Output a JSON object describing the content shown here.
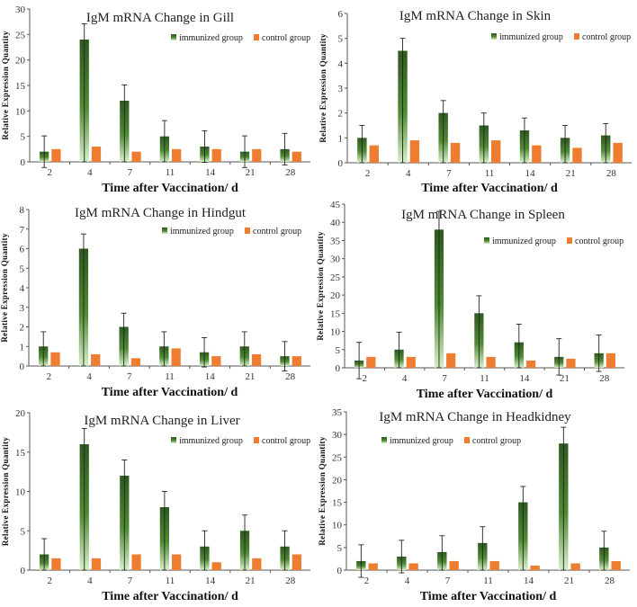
{
  "colors": {
    "immunized_dark": "#2e5a1f",
    "immunized_light": "#d8f0c8",
    "control": "#ee7d31",
    "axis": "#555555"
  },
  "chart_data": [
    {
      "type": "bar",
      "title": "IgM mRNA Change in Gill",
      "xlabel": "Time after  Vaccination/ d",
      "ylabel": "Relative Expression Quantity",
      "categories": [
        "2",
        "4",
        "7",
        "11",
        "14",
        "21",
        "28"
      ],
      "ylim": [
        0,
        30
      ],
      "ystep": 5,
      "legend": "top-right",
      "series": [
        {
          "name": "immunized group",
          "values": [
            2,
            24,
            12,
            5,
            3,
            2,
            2.5
          ],
          "errors": [
            3.1,
            3.1,
            3.1,
            3.1,
            3.1,
            3.1,
            3.1
          ]
        },
        {
          "name": "control group",
          "values": [
            2.5,
            3,
            2,
            2.5,
            2.5,
            2.5,
            2
          ]
        }
      ]
    },
    {
      "type": "bar",
      "title": "IgM mRNA Change in Skin",
      "xlabel": "Time after  Vaccination/ d",
      "ylabel": "Relative Expression Quantity",
      "categories": [
        "2",
        "4",
        "7",
        "11",
        "14",
        "21",
        "28"
      ],
      "ylim": [
        0,
        6
      ],
      "ystep": 1,
      "legend": "top-right",
      "series": [
        {
          "name": "immunized group",
          "values": [
            1,
            4.5,
            2,
            1.5,
            1.3,
            1,
            1.1
          ],
          "errors": [
            0.5,
            0.5,
            0.5,
            0.5,
            0.5,
            0.5,
            0.47
          ]
        },
        {
          "name": "control group",
          "values": [
            0.7,
            0.9,
            0.8,
            0.9,
            0.7,
            0.6,
            0.8
          ]
        }
      ]
    },
    {
      "type": "bar",
      "title": "IgM mRNA Change in Hindgut",
      "xlabel": "Time after  Vaccination/ d",
      "ylabel": "Relative Expression Quantity",
      "categories": [
        "2",
        "4",
        "7",
        "11",
        "14",
        "21",
        "28"
      ],
      "ylim": [
        0,
        8
      ],
      "ystep": 1,
      "legend": "top-right",
      "series": [
        {
          "name": "immunized group",
          "values": [
            1,
            6,
            2,
            1,
            0.7,
            1,
            0.5
          ],
          "errors": [
            0.75,
            0.75,
            0.7,
            0.75,
            0.75,
            0.75,
            0.75
          ]
        },
        {
          "name": "control group",
          "values": [
            0.7,
            0.6,
            0.4,
            0.9,
            0.5,
            0.6,
            0.5
          ]
        }
      ]
    },
    {
      "type": "bar",
      "title": "IgM mRNA Change in Spleen",
      "xlabel": "Time after  Vaccination/ d",
      "ylabel": "Relative Expression Quantity",
      "categories": [
        "2",
        "4",
        "7",
        "11",
        "14",
        "21",
        "28"
      ],
      "ylim": [
        0,
        45
      ],
      "ystep": 5,
      "legend": "top-right",
      "series": [
        {
          "name": "immunized group",
          "values": [
            2,
            5,
            38,
            15,
            7,
            3,
            4
          ],
          "errors": [
            5,
            4.8,
            5,
            4.8,
            5,
            5,
            5
          ]
        },
        {
          "name": "control group",
          "values": [
            3,
            3,
            4,
            3,
            2,
            2.5,
            4
          ]
        }
      ]
    },
    {
      "type": "bar",
      "title": "IgM mRNA Change in Liver",
      "xlabel": "Time after  Vaccination/ d",
      "ylabel": "Relative Expression Quantity",
      "categories": [
        "2",
        "4",
        "7",
        "11",
        "14",
        "21",
        "28"
      ],
      "ylim": [
        0,
        20
      ],
      "ystep": 5,
      "legend": "top-right",
      "series": [
        {
          "name": "immunized group",
          "values": [
            2,
            16,
            12,
            8,
            3,
            5,
            3
          ],
          "errors": [
            2,
            2,
            2,
            2,
            2,
            2,
            2
          ]
        },
        {
          "name": "control group",
          "values": [
            1.5,
            1.5,
            2,
            2,
            1,
            1.5,
            2
          ]
        }
      ]
    },
    {
      "type": "bar",
      "title": "IgM mRNA Change in Headkidney",
      "xlabel": "Time after  Vaccination/ d",
      "ylabel": "Relative Expression Quantity",
      "categories": [
        "2",
        "4",
        "7",
        "11",
        "14",
        "21",
        "28"
      ],
      "ylim": [
        0,
        35
      ],
      "ystep": 5,
      "legend": "top-left",
      "series": [
        {
          "name": "immunized group",
          "values": [
            2,
            3,
            4,
            6,
            15,
            28,
            5
          ],
          "errors": [
            3.6,
            3.6,
            3.6,
            3.6,
            3.5,
            3.6,
            3.6
          ]
        },
        {
          "name": "control group",
          "values": [
            1.5,
            1.5,
            2,
            2,
            1,
            1.5,
            2
          ]
        }
      ]
    }
  ]
}
